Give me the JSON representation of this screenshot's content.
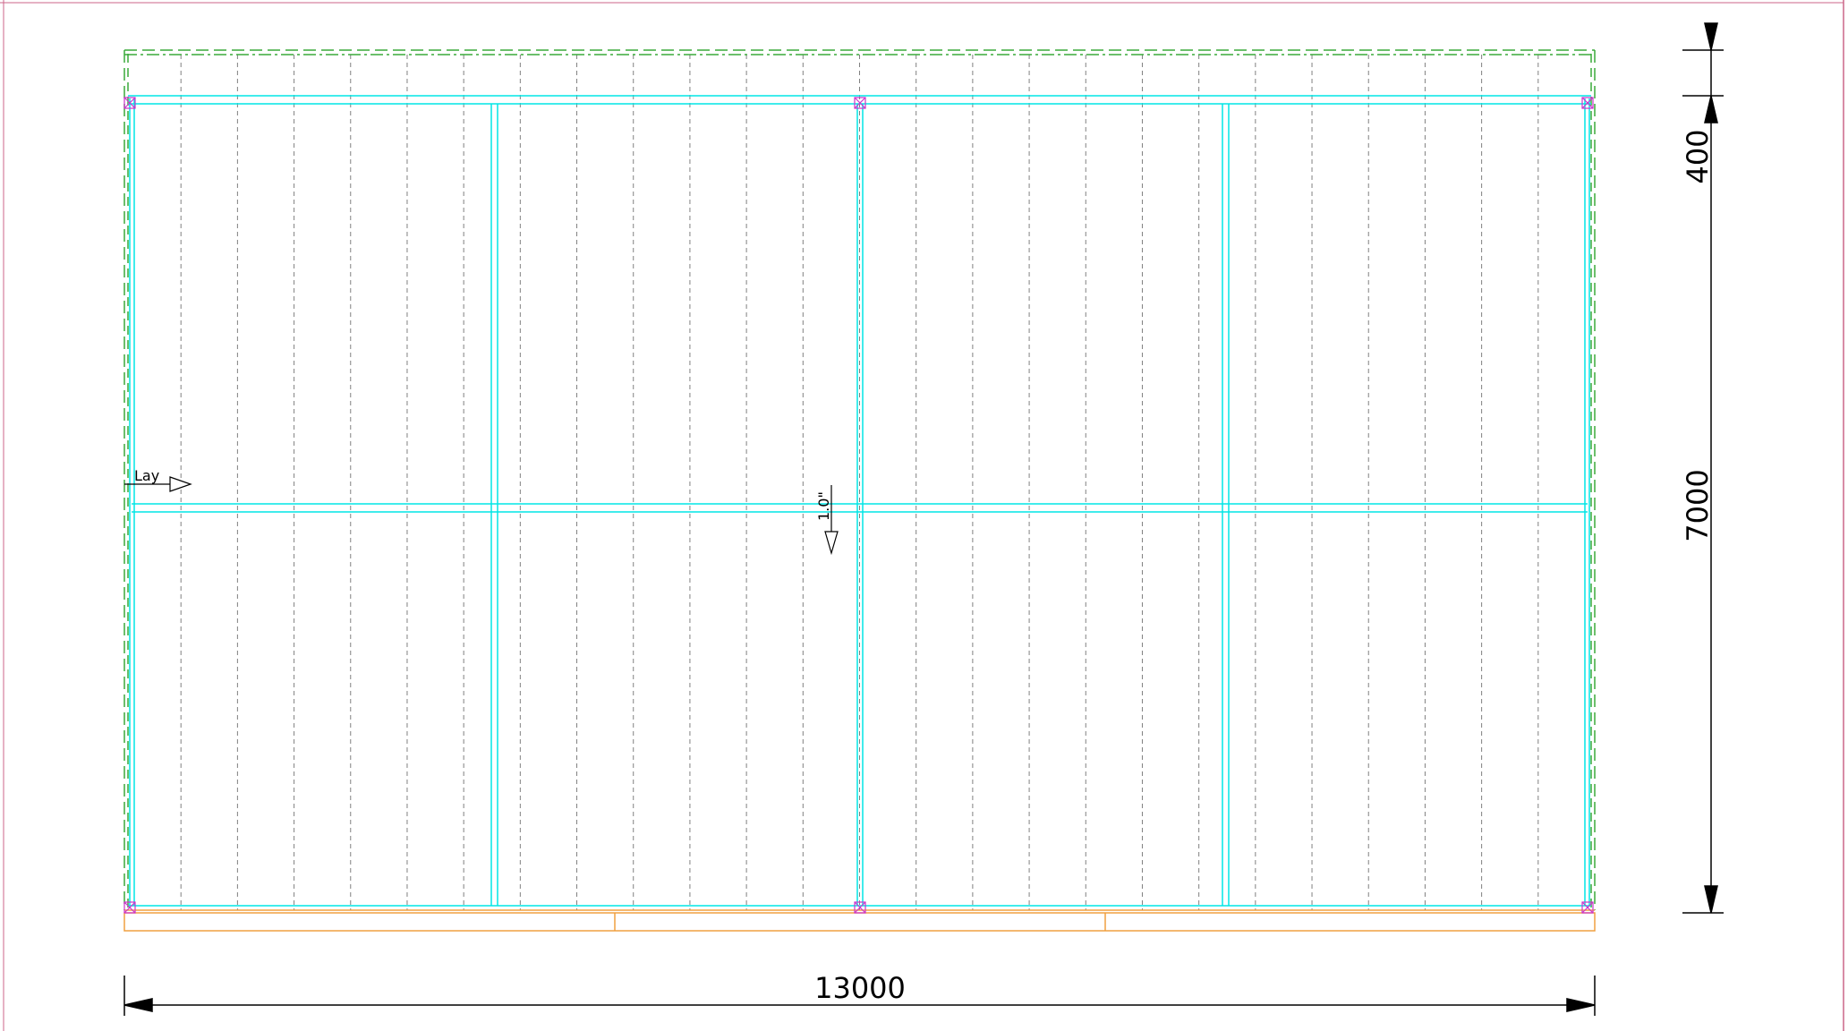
{
  "drawing": {
    "colors": {
      "background": "#ffffff",
      "purlin": "#00e5e5",
      "sheet_joint": "#808080",
      "outline": "#3aaa3a",
      "gutter": "#f0a040",
      "fixing": "#cc33cc",
      "frame": "#cc6688",
      "dimension": "#000000"
    },
    "annotations": {
      "lay_label": "Lay",
      "pitch_label": "1.0\""
    },
    "dimensions": {
      "width": "13000",
      "overhang": "400",
      "depth": "7000"
    },
    "sheet_count": 26,
    "icons": [
      "lay-direction-arrow-icon",
      "pitch-arrow-icon",
      "fixing-cross-icon",
      "dimension-arrowhead-icon"
    ]
  }
}
